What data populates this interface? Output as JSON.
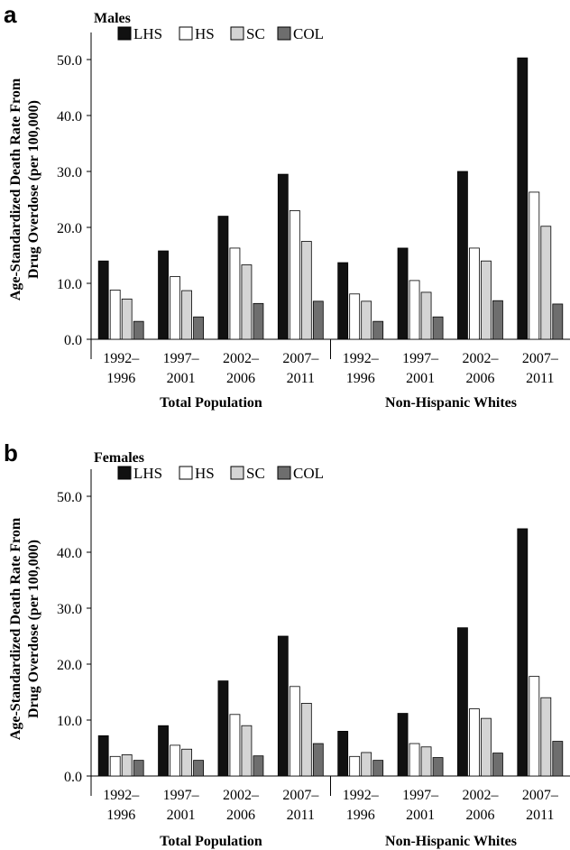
{
  "legend": [
    {
      "name": "LHS",
      "color": "#111111"
    },
    {
      "name": "HS",
      "color": "#ffffff"
    },
    {
      "name": "SC",
      "color": "#d4d4d4"
    },
    {
      "name": "COL",
      "color": "#6e6e6e"
    }
  ],
  "ylabel_line1": "Age-Standardized Death Rate From",
  "ylabel_line2": "Drug Overdose (per 100,000)",
  "chart_data": [
    {
      "type": "bar",
      "panel_letter": "a",
      "title": "Males",
      "ylim": [
        0,
        50
      ],
      "yticks": [
        "0.0",
        "10.0",
        "20.0",
        "30.0",
        "40.0",
        "50.0"
      ],
      "categories": [
        {
          "line1": "1992–",
          "line2": "1996"
        },
        {
          "line1": "1997–",
          "line2": "2001"
        },
        {
          "line1": "2002–",
          "line2": "2006"
        },
        {
          "line1": "2007–",
          "line2": "2011"
        },
        {
          "line1": "1992–",
          "line2": "1996"
        },
        {
          "line1": "1997–",
          "line2": "2001"
        },
        {
          "line1": "2002–",
          "line2": "2006"
        },
        {
          "line1": "2007–",
          "line2": "2011"
        }
      ],
      "groups": [
        "Total Population",
        "Non-Hispanic Whites"
      ],
      "series": [
        {
          "name": "LHS",
          "values": [
            14.0,
            15.8,
            22.0,
            29.5,
            13.7,
            16.3,
            30.0,
            50.3
          ]
        },
        {
          "name": "HS",
          "values": [
            8.8,
            11.2,
            16.3,
            23.0,
            8.1,
            10.5,
            16.3,
            26.3
          ]
        },
        {
          "name": "SC",
          "values": [
            7.2,
            8.7,
            13.3,
            17.5,
            6.8,
            8.4,
            14.0,
            20.2
          ]
        },
        {
          "name": "COL",
          "values": [
            3.2,
            4.0,
            6.4,
            6.8,
            3.2,
            4.0,
            6.9,
            6.3
          ]
        }
      ]
    },
    {
      "type": "bar",
      "panel_letter": "b",
      "title": "Females",
      "ylim": [
        0,
        50
      ],
      "yticks": [
        "0.0",
        "10.0",
        "20.0",
        "30.0",
        "40.0",
        "50.0"
      ],
      "categories": [
        {
          "line1": "1992–",
          "line2": "1996"
        },
        {
          "line1": "1997–",
          "line2": "2001"
        },
        {
          "line1": "2002–",
          "line2": "2006"
        },
        {
          "line1": "2007–",
          "line2": "2011"
        },
        {
          "line1": "1992–",
          "line2": "1996"
        },
        {
          "line1": "1997–",
          "line2": "2001"
        },
        {
          "line1": "2002–",
          "line2": "2006"
        },
        {
          "line1": "2007–",
          "line2": "2011"
        }
      ],
      "groups": [
        "Total Population",
        "Non-Hispanic Whites"
      ],
      "series": [
        {
          "name": "LHS",
          "values": [
            7.2,
            9.0,
            17.0,
            25.0,
            8.0,
            11.2,
            26.5,
            44.2
          ]
        },
        {
          "name": "HS",
          "values": [
            3.5,
            5.5,
            11.0,
            16.0,
            3.5,
            5.8,
            12.0,
            17.8
          ]
        },
        {
          "name": "SC",
          "values": [
            3.8,
            4.8,
            9.0,
            13.0,
            4.2,
            5.2,
            10.3,
            14.0
          ]
        },
        {
          "name": "COL",
          "values": [
            2.8,
            2.8,
            3.6,
            5.8,
            2.8,
            3.3,
            4.1,
            6.2
          ]
        }
      ]
    }
  ]
}
